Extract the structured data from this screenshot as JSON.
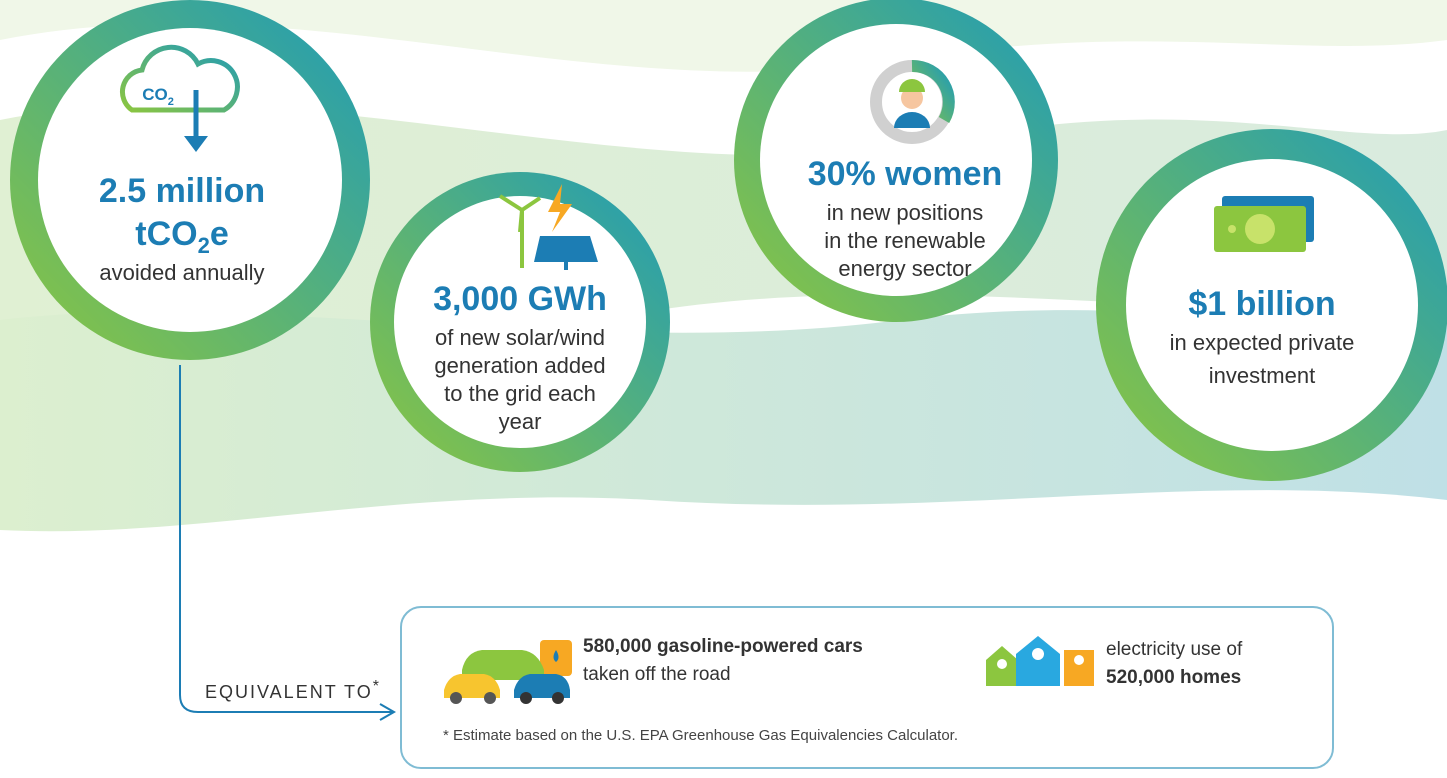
{
  "circles": [
    {
      "icon_text": {
        "main": "CO",
        "sub": "2"
      },
      "headline_1": "2.5 million",
      "headline_2": {
        "main": "tCO",
        "sub": "2",
        "end": "e"
      },
      "lines": [
        "avoided annually"
      ]
    },
    {
      "headline": "3,000 GWh",
      "lines": [
        "of new solar/wind",
        "generation added",
        "to the grid each",
        "year"
      ]
    },
    {
      "headline": "30% women",
      "lines": [
        "in new positions",
        "in the renewable",
        "energy sector"
      ]
    },
    {
      "headline": "$1 billion",
      "lines": [
        "in expected private",
        "investment"
      ]
    }
  ],
  "equivalent": {
    "label": "EQUIVALENT TO",
    "mark": "*"
  },
  "box": {
    "cars": {
      "bold": "580,000 gasoline-powered cars",
      "text": "taken off the road"
    },
    "homes": {
      "text": "electricity use of",
      "bold": "520,000 homes"
    },
    "footnote": "* Estimate based on the U.S. EPA Greenhouse Gas Equivalencies Calculator."
  }
}
